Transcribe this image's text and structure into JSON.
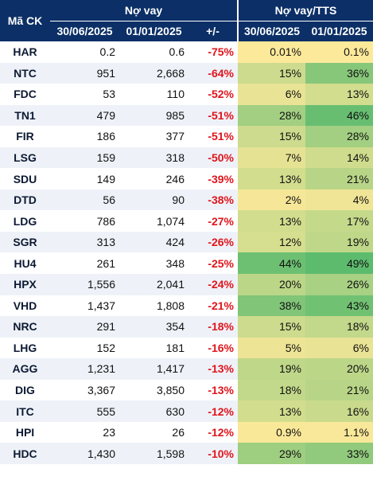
{
  "headers": {
    "code": "Mã CK",
    "debt_group": "Nợ vay",
    "ratio_group": "Nợ vay/TTS",
    "date1": "30/06/2025",
    "date2": "01/01/2025",
    "change": "+/-",
    "ratio_date1": "30/06/2025",
    "ratio_date2": "01/01/2025"
  },
  "color_scale": {
    "low": "#fde99a",
    "high": "#5dbb6e",
    "change_color": "#e0141c",
    "header_bg": "#0b2f66"
  },
  "rows": [
    {
      "code": "HAR",
      "debt1": "0.2",
      "debt2": "0.6",
      "change": "-75%",
      "ratio1": "0.01%",
      "ratio2": "0.1%",
      "v1": 0.01,
      "v2": 0.1
    },
    {
      "code": "NTC",
      "debt1": "951",
      "debt2": "2,668",
      "change": "-64%",
      "ratio1": "15%",
      "ratio2": "36%",
      "v1": 15,
      "v2": 36
    },
    {
      "code": "FDC",
      "debt1": "53",
      "debt2": "110",
      "change": "-52%",
      "ratio1": "6%",
      "ratio2": "13%",
      "v1": 6,
      "v2": 13
    },
    {
      "code": "TN1",
      "debt1": "479",
      "debt2": "985",
      "change": "-51%",
      "ratio1": "28%",
      "ratio2": "46%",
      "v1": 28,
      "v2": 46
    },
    {
      "code": "FIR",
      "debt1": "186",
      "debt2": "377",
      "change": "-51%",
      "ratio1": "15%",
      "ratio2": "28%",
      "v1": 15,
      "v2": 28
    },
    {
      "code": "LSG",
      "debt1": "159",
      "debt2": "318",
      "change": "-50%",
      "ratio1": "7%",
      "ratio2": "14%",
      "v1": 7,
      "v2": 14
    },
    {
      "code": "SDU",
      "debt1": "149",
      "debt2": "246",
      "change": "-39%",
      "ratio1": "13%",
      "ratio2": "21%",
      "v1": 13,
      "v2": 21
    },
    {
      "code": "DTD",
      "debt1": "56",
      "debt2": "90",
      "change": "-38%",
      "ratio1": "2%",
      "ratio2": "4%",
      "v1": 2,
      "v2": 4
    },
    {
      "code": "LDG",
      "debt1": "786",
      "debt2": "1,074",
      "change": "-27%",
      "ratio1": "13%",
      "ratio2": "17%",
      "v1": 13,
      "v2": 17
    },
    {
      "code": "SGR",
      "debt1": "313",
      "debt2": "424",
      "change": "-26%",
      "ratio1": "12%",
      "ratio2": "19%",
      "v1": 12,
      "v2": 19
    },
    {
      "code": "HU4",
      "debt1": "261",
      "debt2": "348",
      "change": "-25%",
      "ratio1": "44%",
      "ratio2": "49%",
      "v1": 44,
      "v2": 49
    },
    {
      "code": "HPX",
      "debt1": "1,556",
      "debt2": "2,041",
      "change": "-24%",
      "ratio1": "20%",
      "ratio2": "26%",
      "v1": 20,
      "v2": 26
    },
    {
      "code": "VHD",
      "debt1": "1,437",
      "debt2": "1,808",
      "change": "-21%",
      "ratio1": "38%",
      "ratio2": "43%",
      "v1": 38,
      "v2": 43
    },
    {
      "code": "NRC",
      "debt1": "291",
      "debt2": "354",
      "change": "-18%",
      "ratio1": "15%",
      "ratio2": "18%",
      "v1": 15,
      "v2": 18
    },
    {
      "code": "LHG",
      "debt1": "152",
      "debt2": "181",
      "change": "-16%",
      "ratio1": "5%",
      "ratio2": "6%",
      "v1": 5,
      "v2": 6
    },
    {
      "code": "AGG",
      "debt1": "1,231",
      "debt2": "1,417",
      "change": "-13%",
      "ratio1": "19%",
      "ratio2": "20%",
      "v1": 19,
      "v2": 20
    },
    {
      "code": "DIG",
      "debt1": "3,367",
      "debt2": "3,850",
      "change": "-13%",
      "ratio1": "18%",
      "ratio2": "21%",
      "v1": 18,
      "v2": 21
    },
    {
      "code": "ITC",
      "debt1": "555",
      "debt2": "630",
      "change": "-12%",
      "ratio1": "13%",
      "ratio2": "16%",
      "v1": 13,
      "v2": 16
    },
    {
      "code": "HPI",
      "debt1": "23",
      "debt2": "26",
      "change": "-12%",
      "ratio1": "0.9%",
      "ratio2": "1.1%",
      "v1": 0.9,
      "v2": 1.1
    },
    {
      "code": "HDC",
      "debt1": "1,430",
      "debt2": "1,598",
      "change": "-10%",
      "ratio1": "29%",
      "ratio2": "33%",
      "v1": 29,
      "v2": 33
    }
  ]
}
